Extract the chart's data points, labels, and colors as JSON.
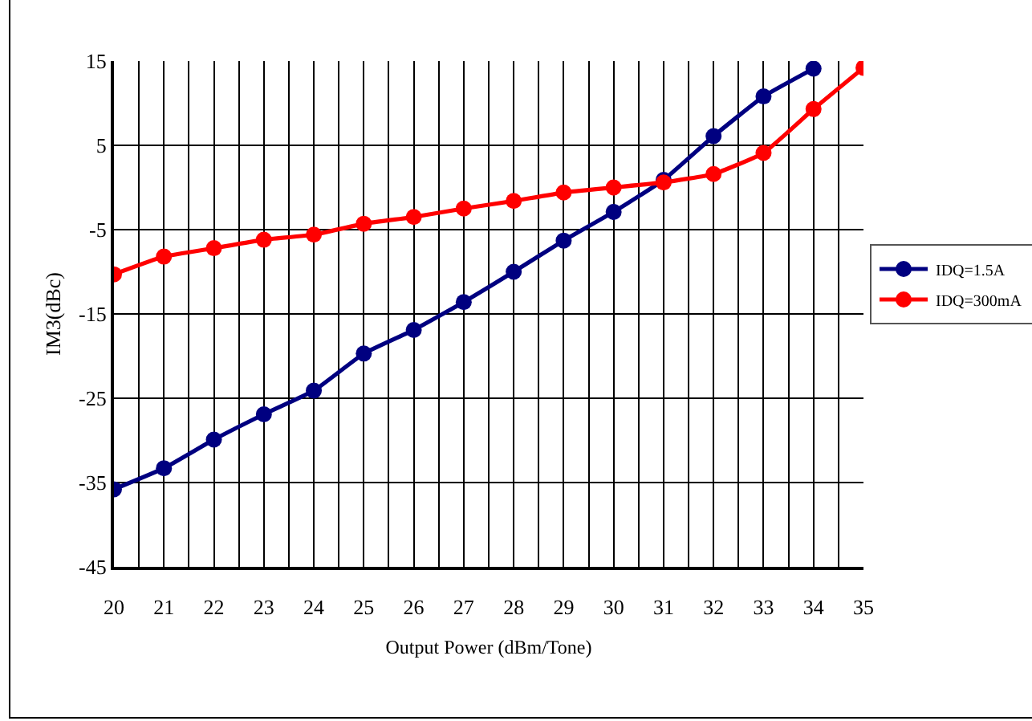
{
  "chart_data": {
    "type": "line",
    "xlabel": "Output Power (dBm/Tone)",
    "ylabel": "IM3(dBc)",
    "x": [
      20,
      21,
      22,
      23,
      24,
      25,
      26,
      27,
      28,
      29,
      30,
      31,
      32,
      33,
      34,
      35
    ],
    "series": [
      {
        "name": "IDQ=1.5A",
        "color": "#000080",
        "values": [
          -35.8,
          -33.3,
          -29.9,
          -26.9,
          -24.1,
          -19.7,
          -16.9,
          -13.6,
          -10.0,
          -6.3,
          -2.9,
          0.9,
          6.1,
          10.8,
          14.1,
          null
        ]
      },
      {
        "name": "IDQ=300mA",
        "color": "#ff0000",
        "values": [
          -10.3,
          -8.2,
          -7.2,
          -6.2,
          -5.6,
          -4.3,
          -3.5,
          -2.5,
          -1.6,
          -0.6,
          0.0,
          0.6,
          1.6,
          4.1,
          9.3,
          14.2
        ]
      }
    ],
    "xlim": [
      20,
      35
    ],
    "xticks": [
      20,
      {
        "value": 20.5,
        "label": null
      },
      21,
      {
        "value": 21.5,
        "label": null
      },
      22,
      {
        "value": 22.5,
        "label": null
      },
      23,
      {
        "value": 23.5,
        "label": null
      },
      24,
      {
        "value": 24.5,
        "label": null
      },
      25,
      {
        "value": 25.5,
        "label": null
      },
      26,
      {
        "value": 26.5,
        "label": null
      },
      27,
      {
        "value": 27.5,
        "label": null
      },
      28,
      {
        "value": 28.5,
        "label": null
      },
      29,
      {
        "value": 29.5,
        "label": null
      },
      30,
      {
        "value": 30.5,
        "label": null
      },
      31,
      {
        "value": 31.5,
        "label": null
      },
      32,
      {
        "value": 32.5,
        "label": null
      },
      33,
      {
        "value": 33.5,
        "label": null
      },
      34,
      {
        "value": 34.5,
        "label": null
      },
      35
    ],
    "ylim": [
      -45,
      15
    ],
    "yticks": [
      -45,
      -35,
      -25,
      -15,
      -5,
      5,
      15
    ],
    "grid": true,
    "legend": "right",
    "marker": "circle",
    "line_style": "solid"
  }
}
